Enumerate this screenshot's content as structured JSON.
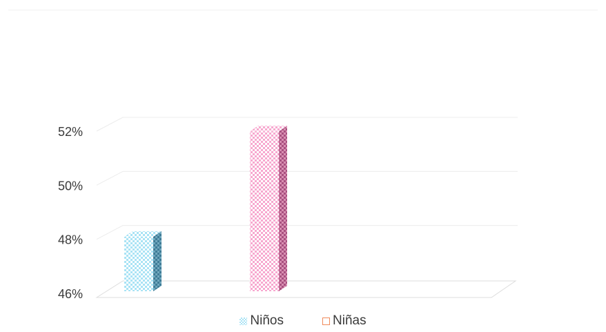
{
  "chart_data": {
    "type": "bar",
    "style": "3d-clustered-column",
    "categories": [
      ""
    ],
    "series": [
      {
        "name": "Niños",
        "values": [
          48.1
        ],
        "color": "#a9e3f5",
        "pattern": "checker"
      },
      {
        "name": "Niñas",
        "values": [
          52.0
        ],
        "color": "#f7a8cf",
        "pattern": "checker"
      }
    ],
    "ylim": [
      46,
      52
    ],
    "yticks": [
      "46%",
      "48%",
      "50%",
      "52%"
    ],
    "ytick_values": [
      46,
      48,
      50,
      52
    ],
    "title": "",
    "xlabel": "",
    "ylabel": "",
    "grid": true,
    "legend_position": "bottom"
  }
}
